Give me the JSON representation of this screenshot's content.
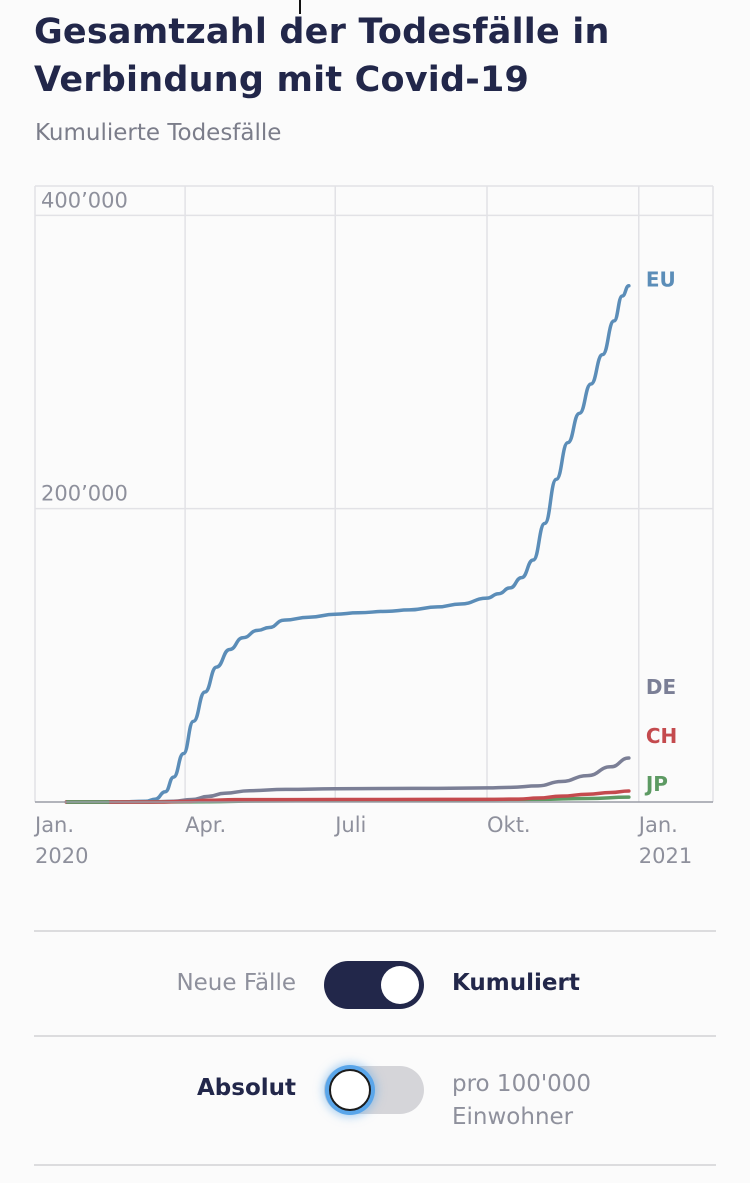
{
  "title": "Gesamtzahl der Todesfälle in Verbindung mit Covid-19",
  "subtitle": "Kumulierte Todesfälle",
  "toggles": {
    "mode": {
      "left_label": "Neue Fälle",
      "right_label": "Kumuliert",
      "state": "on"
    },
    "scale": {
      "left_label": "Absolut",
      "right_label_line1": "pro 100'000",
      "right_label_line2": "Einwohner",
      "state": "off"
    }
  },
  "colors": {
    "EU": "#5b8db8",
    "DE": "#7b7f96",
    "CH": "#c44a4e",
    "JP": "#5d9a63",
    "grid": "#e2e2e6",
    "text": "#22274a",
    "muted": "#8e909c"
  },
  "chart_data": {
    "type": "line",
    "title": "Gesamtzahl der Todesfälle in Verbindung mit Covid-19",
    "subtitle": "Kumulierte Todesfälle",
    "x_axis": {
      "type": "date",
      "range": [
        "2020-01-01",
        "2021-02-15"
      ],
      "ticks": [
        {
          "date": "2020-01-01",
          "line1": "Jan.",
          "line2": "2020"
        },
        {
          "date": "2020-04-01",
          "line1": "Apr.",
          "line2": ""
        },
        {
          "date": "2020-07-01",
          "line1": "Juli",
          "line2": ""
        },
        {
          "date": "2020-10-01",
          "line1": "Okt.",
          "line2": ""
        },
        {
          "date": "2021-01-01",
          "line1": "Jan.",
          "line2": "2021"
        }
      ]
    },
    "y_axis": {
      "range": [
        0,
        420000
      ],
      "ticks": [
        {
          "value": 200000,
          "label": "200’000"
        },
        {
          "value": 400000,
          "label": "400’000"
        }
      ]
    },
    "grid": true,
    "series": [
      {
        "name": "EU",
        "label_value": 352000,
        "x": [
          "2020-01-20",
          "2020-02-20",
          "2020-03-08",
          "2020-03-14",
          "2020-03-20",
          "2020-03-25",
          "2020-03-31",
          "2020-04-06",
          "2020-04-13",
          "2020-04-20",
          "2020-04-28",
          "2020-05-06",
          "2020-05-15",
          "2020-05-22",
          "2020-05-31",
          "2020-06-15",
          "2020-07-01",
          "2020-07-15",
          "2020-08-01",
          "2020-08-15",
          "2020-09-01",
          "2020-09-15",
          "2020-10-01",
          "2020-10-08",
          "2020-10-15",
          "2020-10-22",
          "2020-10-29",
          "2020-11-05",
          "2020-11-12",
          "2020-11-19",
          "2020-11-26",
          "2020-12-03",
          "2020-12-10",
          "2020-12-17",
          "2020-12-22",
          "2020-12-26"
        ],
        "values": [
          0,
          0,
          500,
          2000,
          7000,
          17000,
          33000,
          55000,
          75000,
          92000,
          104000,
          112000,
          117000,
          119000,
          124000,
          126000,
          128000,
          129000,
          130000,
          131000,
          133000,
          135000,
          139000,
          142000,
          146000,
          153000,
          165000,
          190000,
          220000,
          245000,
          265000,
          285000,
          305000,
          328000,
          345000,
          352000
        ]
      },
      {
        "name": "DE",
        "label_value": 30000,
        "x": [
          "2020-01-20",
          "2020-03-10",
          "2020-03-25",
          "2020-04-05",
          "2020-04-15",
          "2020-04-25",
          "2020-05-10",
          "2020-06-01",
          "2020-07-01",
          "2020-08-01",
          "2020-09-01",
          "2020-10-01",
          "2020-10-15",
          "2020-11-01",
          "2020-11-15",
          "2020-12-01",
          "2020-12-15",
          "2020-12-26"
        ],
        "values": [
          0,
          0,
          500,
          1700,
          3800,
          6000,
          7700,
          8600,
          9000,
          9200,
          9300,
          9600,
          10000,
          11000,
          14000,
          18000,
          24000,
          30000
        ]
      },
      {
        "name": "CH",
        "label_value": 7500,
        "x": [
          "2020-01-20",
          "2020-03-15",
          "2020-04-01",
          "2020-04-15",
          "2020-05-01",
          "2020-06-01",
          "2020-08-01",
          "2020-10-01",
          "2020-10-20",
          "2020-11-01",
          "2020-11-15",
          "2020-12-01",
          "2020-12-15",
          "2020-12-26"
        ],
        "values": [
          0,
          0,
          400,
          1200,
          1600,
          1650,
          1700,
          1800,
          2000,
          2700,
          4000,
          5300,
          6500,
          7500
        ]
      },
      {
        "name": "JP",
        "label_value": 3300,
        "x": [
          "2020-01-20",
          "2020-03-15",
          "2020-04-15",
          "2020-05-15",
          "2020-07-01",
          "2020-09-01",
          "2020-10-01",
          "2020-11-01",
          "2020-12-01",
          "2020-12-26"
        ],
        "values": [
          0,
          30,
          200,
          700,
          980,
          1400,
          1600,
          1800,
          2400,
          3300
        ]
      }
    ]
  }
}
